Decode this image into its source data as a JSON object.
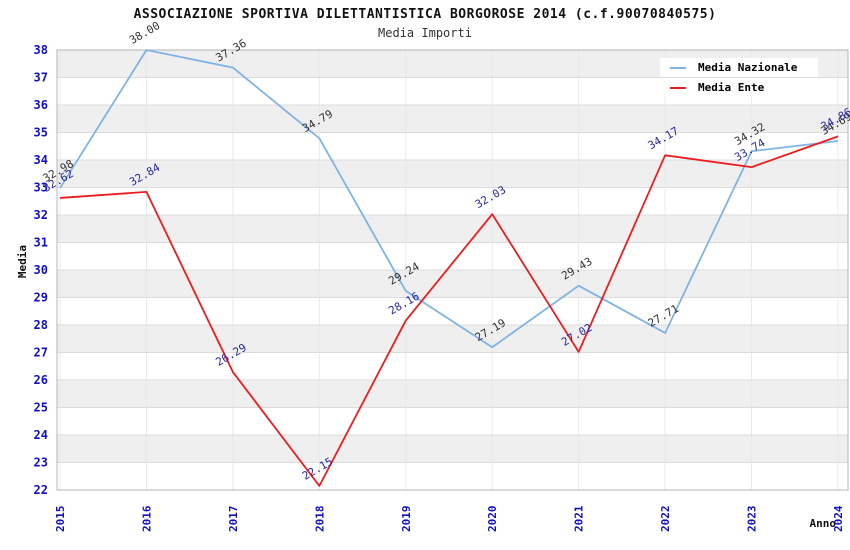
{
  "header": {
    "title": "ASSOCIAZIONE SPORTIVA DILETTANTISTICA BORGOROSE 2014 (c.f.90070840575)",
    "subtitle": "Media Importi"
  },
  "chart_data": {
    "type": "line",
    "title": "ASSOCIAZIONE SPORTIVA DILETTANTISTICA BORGOROSE 2014 (c.f.90070840575)",
    "subtitle": "Media Importi",
    "xlabel": "Anno",
    "ylabel": "Media",
    "x": [
      "2015",
      "2016",
      "2017",
      "2018",
      "2019",
      "2020",
      "2021",
      "2022",
      "2023",
      "2024"
    ],
    "series": [
      {
        "name": "Media Nazionale",
        "color": "#7fb3e8",
        "label_color": "#333333",
        "values": [
          32.98,
          38.0,
          37.36,
          34.79,
          29.24,
          27.19,
          29.43,
          27.71,
          34.32,
          34.69
        ],
        "labels": [
          "32.98",
          "38.00",
          "37.36",
          "34.79",
          "29.24",
          "27.19",
          "29.43",
          "27.71",
          "34.32",
          "34.69"
        ]
      },
      {
        "name": "Media Ente",
        "color": "#ee1c1c",
        "label_color": "#2929a3",
        "values": [
          32.62,
          32.84,
          26.29,
          22.15,
          28.16,
          32.03,
          27.02,
          34.17,
          33.74,
          34.86
        ],
        "labels": [
          "32.62",
          "32.84",
          "26.29",
          "22.15",
          "28.16",
          "32.03",
          "27.02",
          "34.17",
          "33.74",
          "34.86"
        ]
      }
    ],
    "ylim": [
      22,
      38
    ],
    "ytick_step": 1,
    "grid": true,
    "legend_position": "top-right",
    "band_colors": [
      "#efefef",
      "#ffffff"
    ],
    "axis_text_color": "#0f0fc8",
    "gridline_color": "#dcdcdc",
    "plot_border_color": "#b4b4b4"
  }
}
